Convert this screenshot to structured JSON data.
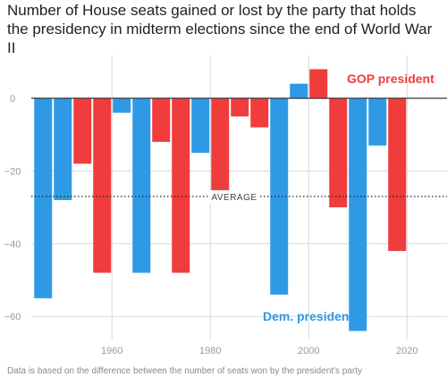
{
  "title": "Number of House seats gained or lost by the party that holds the presidency in midterm elections since the end of World War II",
  "footnote": "Data is based on the difference between the number of seats won by the president's party",
  "chart_data": {
    "type": "bar",
    "title": "Number of House seats gained or lost by the party that holds the presidency in midterm elections since the end of World War II",
    "x": [
      1946,
      1950,
      1954,
      1958,
      1962,
      1966,
      1970,
      1974,
      1978,
      1982,
      1986,
      1990,
      1994,
      1998,
      2002,
      2006,
      2010,
      2014,
      2018
    ],
    "values": [
      -55,
      -28,
      -18,
      -48,
      -4,
      -48,
      -12,
      -48,
      -15,
      -26,
      -5,
      -8,
      -54,
      4,
      8,
      -30,
      -64,
      -13,
      -42
    ],
    "party": [
      "D",
      "D",
      "R",
      "R",
      "D",
      "D",
      "R",
      "R",
      "D",
      "R",
      "R",
      "R",
      "D",
      "D",
      "R",
      "R",
      "D",
      "D",
      "R"
    ],
    "colors": {
      "D": "#2e9ae6",
      "R": "#f03c3c",
      "gridline": "#d9d9d9",
      "zero": "#333333",
      "tick_label": "#999999"
    },
    "xticks": [
      1960,
      1980,
      2000,
      2020
    ],
    "yticks": [
      0,
      -20,
      -40,
      -60
    ],
    "xlim": [
      1943,
      2022
    ],
    "ylim": [
      -68,
      15
    ],
    "grid": true,
    "average": {
      "value": -27,
      "label": "AVERAGE"
    },
    "legend": [
      {
        "label": "GOP president",
        "party": "R"
      },
      {
        "label": "Dem. president",
        "party": "D"
      }
    ]
  }
}
